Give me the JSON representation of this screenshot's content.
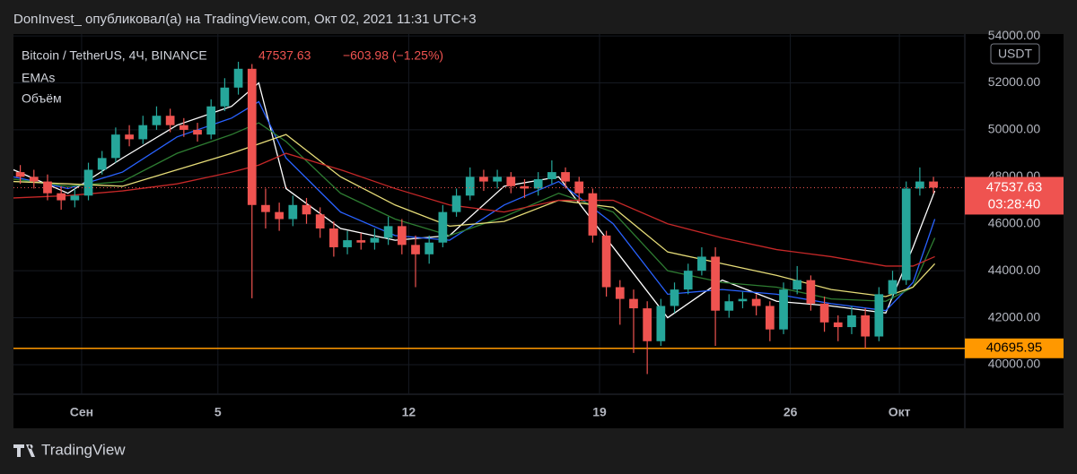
{
  "header": {
    "publisher": "DonInvest_ опубликовал(а) на TradingView.com, Окт 02, 2021 11:31 UTC+3"
  },
  "footer": {
    "brand": "TradingView"
  },
  "chart_data": {
    "type": "candlestick",
    "symbol": "Bitcoin / TetherUS, 4Ч, BINANCE",
    "last_price": 47537.63,
    "change_label": "−603.98 (−1.25%)",
    "indicators": [
      "EMAs",
      "Объём"
    ],
    "currency": "USDT",
    "countdown": "03:28:40",
    "up_color": "#26a69a",
    "down_color": "#ef5350",
    "xlim": [
      -2.5,
      32.4
    ],
    "xticks": [
      {
        "value": 0,
        "label": "Сен"
      },
      5,
      12,
      19,
      26,
      {
        "value": 30,
        "label": "Окт"
      }
    ],
    "ylim": [
      38740,
      54080
    ],
    "yticks": [
      {
        "value": 40000,
        "label": "40000.00"
      },
      {
        "value": 42000,
        "label": "42000.00"
      },
      {
        "value": 44000,
        "label": "44000.00"
      },
      {
        "value": 46000,
        "label": "46000.00"
      },
      {
        "value": 48000,
        "label": "48000.00"
      },
      {
        "value": 50000,
        "label": "50000.00"
      },
      {
        "value": 52000,
        "label": "52000.00"
      },
      {
        "value": 54000,
        "label": "54000.00"
      }
    ],
    "grid": true,
    "x": [
      -2.25,
      -1.75,
      -1.25,
      -0.75,
      -0.25,
      0.25,
      0.75,
      1.25,
      1.75,
      2.25,
      2.75,
      3.25,
      3.75,
      4.25,
      4.75,
      5.25,
      5.75,
      6.25,
      6.75,
      7.25,
      7.75,
      8.25,
      8.75,
      9.25,
      9.75,
      10.25,
      10.75,
      11.25,
      11.75,
      12.25,
      12.75,
      13.25,
      13.75,
      14.25,
      14.75,
      15.25,
      15.75,
      16.25,
      16.75,
      17.25,
      17.75,
      18.25,
      18.75,
      19.25,
      19.75,
      20.25,
      20.75,
      21.25,
      21.75,
      22.25,
      22.75,
      23.25,
      23.75,
      24.25,
      24.75,
      25.25,
      25.75,
      26.25,
      26.75,
      27.25,
      27.75,
      28.25,
      28.75,
      29.25,
      29.75,
      30.25,
      30.75,
      31.25
    ],
    "open": [
      48200,
      48000,
      47800,
      47300,
      47000,
      47200,
      48300,
      48800,
      49800,
      49600,
      50200,
      50600,
      50200,
      50000,
      49800,
      51000,
      51800,
      52600,
      46800,
      46500,
      46200,
      46800,
      46400,
      45800,
      45000,
      45300,
      45200,
      45400,
      45900,
      45100,
      44700,
      45200,
      46500,
      47200,
      48000,
      47800,
      48000,
      47600,
      47500,
      47900,
      48200,
      47800,
      47300,
      45500,
      43300,
      42800,
      42400,
      41000,
      42500,
      43200,
      44000,
      44600,
      42300,
      42700,
      42800,
      42500,
      41500,
      43200,
      43600,
      42600,
      41800,
      41600,
      42100,
      41200,
      43000,
      43600,
      47500,
      47800
    ],
    "high": [
      48500,
      48300,
      48100,
      47600,
      47500,
      48600,
      49100,
      50100,
      50200,
      50600,
      51000,
      50900,
      50500,
      50300,
      51300,
      52200,
      52900,
      52800,
      47500,
      46900,
      47200,
      47100,
      46700,
      46100,
      45700,
      45600,
      45800,
      46300,
      46200,
      45500,
      45500,
      46800,
      47500,
      48400,
      48300,
      48300,
      48200,
      47900,
      48200,
      48700,
      48400,
      48000,
      47500,
      45700,
      43600,
      43200,
      42700,
      42800,
      43500,
      44300,
      45000,
      45000,
      43000,
      43100,
      43000,
      42700,
      43500,
      44200,
      43800,
      42900,
      42100,
      42500,
      42400,
      43300,
      44000,
      47800,
      48400,
      48000
    ],
    "low": [
      47700,
      47500,
      47000,
      46600,
      46700,
      47000,
      48100,
      48600,
      49300,
      49400,
      50000,
      49900,
      49700,
      49500,
      49600,
      50800,
      51500,
      42830,
      45800,
      45700,
      45900,
      46000,
      45400,
      44600,
      44700,
      44900,
      44900,
      45100,
      44700,
      43300,
      44300,
      45000,
      46300,
      47000,
      47400,
      47500,
      47300,
      47100,
      47200,
      47700,
      47500,
      46900,
      45200,
      42900,
      41700,
      40500,
      39600,
      40800,
      42200,
      43000,
      43800,
      40800,
      42000,
      42400,
      42100,
      41000,
      41300,
      43000,
      42300,
      41400,
      41000,
      41300,
      40700,
      41000,
      42800,
      43400,
      47200,
      47300
    ],
    "close": [
      48000,
      47800,
      47300,
      47000,
      47200,
      48300,
      48800,
      49800,
      49600,
      50200,
      50600,
      50200,
      50000,
      49800,
      51000,
      51800,
      52600,
      46800,
      46500,
      46200,
      46800,
      46400,
      45800,
      45000,
      45300,
      45200,
      45400,
      45900,
      45100,
      44700,
      45200,
      46500,
      47200,
      48000,
      47800,
      48000,
      47600,
      47500,
      47900,
      48200,
      47800,
      47300,
      45500,
      43300,
      42800,
      42400,
      41000,
      42500,
      43200,
      44000,
      44600,
      42300,
      42700,
      42800,
      42500,
      41500,
      43200,
      43600,
      42600,
      41800,
      41600,
      42100,
      41200,
      43000,
      43600,
      47500,
      47800,
      47537.63
    ],
    "ema_x": [
      -2.5,
      -0.5,
      1.5,
      3.5,
      5.5,
      6.5,
      7.5,
      9.5,
      11.5,
      13.5,
      15.5,
      17.5,
      19.5,
      21.5,
      23.5,
      25.5,
      27.5,
      29.5,
      30.5,
      31.3
    ],
    "ema": [
      {
        "color": "#ffffff",
        "values": [
          48300,
          47300,
          48800,
          50200,
          51000,
          52000,
          47500,
          45800,
          45300,
          45500,
          47600,
          48000,
          45000,
          42000,
          43600,
          42700,
          42500,
          42200,
          45000,
          47400
        ]
      },
      {
        "color": "#2962ff",
        "values": [
          48000,
          47500,
          48200,
          49700,
          50500,
          51200,
          48800,
          46500,
          45500,
          45300,
          46800,
          47800,
          46000,
          43000,
          43200,
          43000,
          42600,
          42300,
          43500,
          46200
        ]
      },
      {
        "color": "#2e7d32",
        "values": [
          47900,
          47600,
          47800,
          49000,
          49800,
          50300,
          49500,
          47300,
          46200,
          45500,
          46300,
          47300,
          46500,
          44000,
          43500,
          43300,
          42800,
          42700,
          43300,
          45400
        ]
      },
      {
        "color": "#e6dc78",
        "values": [
          47800,
          47700,
          47600,
          48300,
          49000,
          49400,
          49800,
          48000,
          46800,
          45900,
          46100,
          47000,
          46700,
          44800,
          44300,
          43800,
          43200,
          42900,
          43300,
          44300
        ]
      },
      {
        "color": "#c62828",
        "values": [
          47100,
          47200,
          47400,
          47700,
          48200,
          48500,
          49000,
          48300,
          47500,
          46800,
          46500,
          47000,
          47000,
          46000,
          45400,
          44900,
          44600,
          44200,
          44200,
          44600
        ]
      }
    ],
    "support": {
      "value": 40695.95,
      "label": "40695.95",
      "color": "#ff9800"
    }
  }
}
